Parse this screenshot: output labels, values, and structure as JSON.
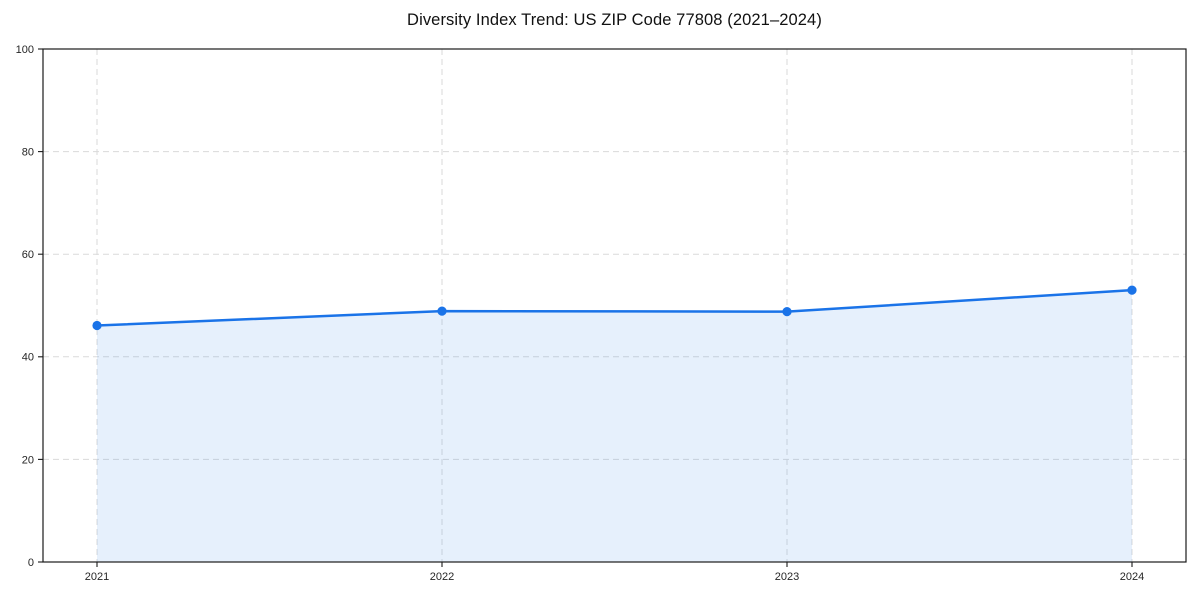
{
  "chart_data": {
    "type": "area",
    "title": "Diversity Index Trend: US ZIP Code 77808 (2021–2024)",
    "xlabel": "",
    "ylabel": "",
    "x": [
      2021,
      2022,
      2023,
      2024
    ],
    "x_tick_labels": [
      "2021",
      "2022",
      "2023",
      "2024"
    ],
    "series": [
      {
        "name": "Diversity Index",
        "values": [
          46.1,
          48.9,
          48.8,
          53.0
        ]
      }
    ],
    "ylim": [
      0,
      100
    ],
    "yticks": [
      0,
      20,
      40,
      60,
      80,
      100
    ],
    "y_tick_labels": [
      "0",
      "20",
      "40",
      "60",
      "80",
      "100"
    ],
    "grid": true,
    "grid_style": "dashed",
    "legend_position": "none",
    "colors": {
      "line": "#1a73e8",
      "marker": "#1a73e8",
      "fill": "rgba(26,115,232,0.11)",
      "grid": "#dadada",
      "spine": "#1a1a1a",
      "tick": "#1a1a1a",
      "tick_label": "#262626",
      "title": "#111111",
      "background": "#ffffff"
    }
  }
}
